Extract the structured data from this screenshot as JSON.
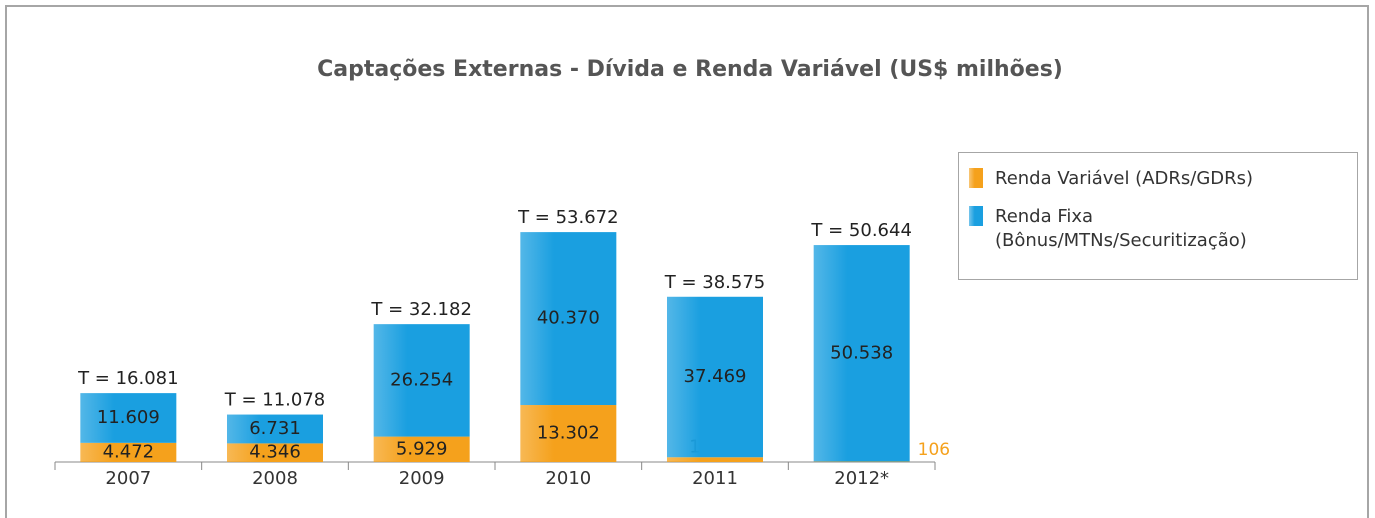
{
  "chart_data": {
    "type": "stacked_bar",
    "title": "Captações Externas - Dívida e Renda Variável (US$ milhões)",
    "categories": [
      "2007",
      "2008",
      "2009",
      "2010",
      "2011",
      "2012*"
    ],
    "series": [
      {
        "name": "Renda Variável (ADRs/GDRs)",
        "color": "#f5a11c",
        "values": [
          4472,
          4346,
          5929,
          13302,
          1106,
          106
        ],
        "value_labels": [
          "4.472",
          "4.346",
          "5.929",
          "13.302",
          "1.106",
          "106"
        ]
      },
      {
        "name": "Renda Fixa (Bônus/MTNs/Securitização)",
        "color": "#1a9fe0",
        "values": [
          11609,
          6731,
          26254,
          40370,
          37469,
          50538
        ],
        "value_labels": [
          "11.609",
          "6.731",
          "26.254",
          "40.370",
          "37.469",
          "50.538"
        ]
      }
    ],
    "annotations": [
      "T = 16.081",
      "T = 11.078",
      "T = 32.182",
      "T = 53.672",
      "T = 38.575",
      "T = 50.644"
    ],
    "ylim": [
      0,
      60000
    ],
    "legend": "right"
  }
}
